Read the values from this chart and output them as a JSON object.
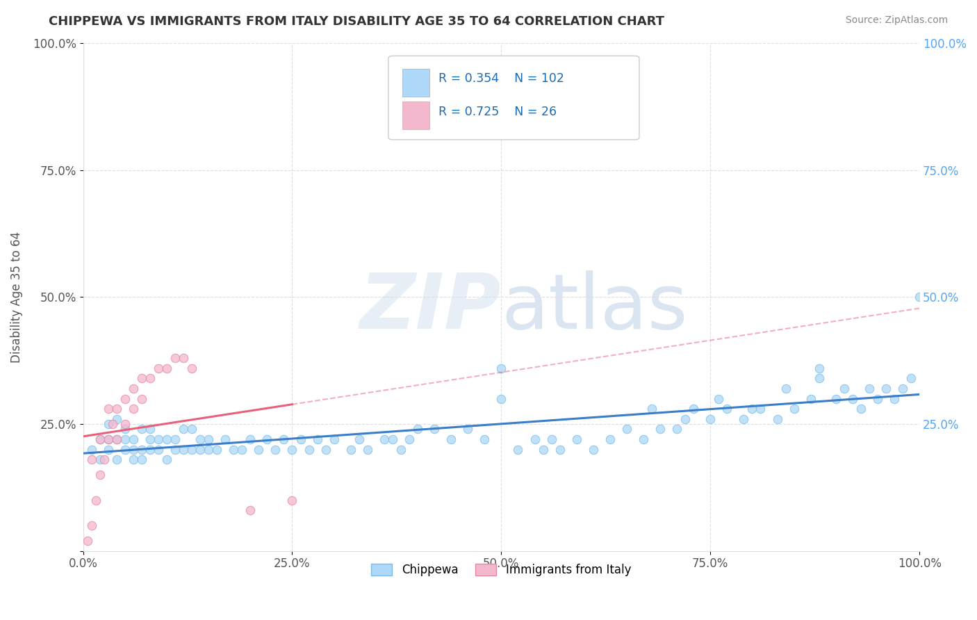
{
  "title": "CHIPPEWA VS IMMIGRANTS FROM ITALY DISABILITY AGE 35 TO 64 CORRELATION CHART",
  "source": "Source: ZipAtlas.com",
  "ylabel": "Disability Age 35 to 64",
  "watermark": "ZIPatlas",
  "legend_label1": "Chippewa",
  "legend_label2": "Immigrants from Italy",
  "r1": 0.354,
  "n1": 102,
  "r2": 0.725,
  "n2": 26,
  "color1": "#ADD8F7",
  "color2": "#F4B8CE",
  "line1_color": "#3A7DC9",
  "line2_color": "#E8607A",
  "xlim": [
    0.0,
    1.0
  ],
  "ylim": [
    0.0,
    1.0
  ],
  "xticks": [
    0.0,
    0.25,
    0.5,
    0.75,
    1.0
  ],
  "yticks": [
    0.0,
    0.25,
    0.5,
    0.75,
    1.0
  ],
  "xticklabels": [
    "0.0%",
    "25.0%",
    "50.0%",
    "75.0%",
    "100.0%"
  ],
  "yticklabels": [
    "",
    "25.0%",
    "50.0%",
    "75.0%",
    "100.0%"
  ],
  "background_color": "#FFFFFF",
  "legend_text_color": "#1a6bb5",
  "n_text_color": "#1a6bb5",
  "chippewa_x": [
    0.01,
    0.02,
    0.02,
    0.03,
    0.03,
    0.03,
    0.04,
    0.04,
    0.04,
    0.05,
    0.05,
    0.05,
    0.06,
    0.06,
    0.06,
    0.07,
    0.07,
    0.07,
    0.08,
    0.08,
    0.08,
    0.09,
    0.09,
    0.1,
    0.1,
    0.11,
    0.11,
    0.12,
    0.12,
    0.13,
    0.13,
    0.14,
    0.14,
    0.15,
    0.15,
    0.16,
    0.17,
    0.18,
    0.19,
    0.2,
    0.21,
    0.22,
    0.23,
    0.24,
    0.25,
    0.26,
    0.27,
    0.28,
    0.29,
    0.3,
    0.32,
    0.33,
    0.34,
    0.36,
    0.37,
    0.38,
    0.39,
    0.4,
    0.42,
    0.44,
    0.46,
    0.48,
    0.5,
    0.52,
    0.54,
    0.56,
    0.57,
    0.59,
    0.61,
    0.63,
    0.65,
    0.67,
    0.69,
    0.71,
    0.73,
    0.75,
    0.77,
    0.79,
    0.81,
    0.83,
    0.85,
    0.87,
    0.88,
    0.9,
    0.91,
    0.92,
    0.93,
    0.94,
    0.95,
    0.96,
    0.97,
    0.98,
    0.99,
    1.0,
    0.68,
    0.72,
    0.76,
    0.8,
    0.84,
    0.88,
    0.5,
    0.55
  ],
  "chippewa_y": [
    0.2,
    0.18,
    0.22,
    0.2,
    0.22,
    0.25,
    0.18,
    0.22,
    0.26,
    0.2,
    0.22,
    0.24,
    0.18,
    0.2,
    0.22,
    0.18,
    0.2,
    0.24,
    0.2,
    0.22,
    0.24,
    0.2,
    0.22,
    0.18,
    0.22,
    0.2,
    0.22,
    0.2,
    0.24,
    0.2,
    0.24,
    0.2,
    0.22,
    0.2,
    0.22,
    0.2,
    0.22,
    0.2,
    0.2,
    0.22,
    0.2,
    0.22,
    0.2,
    0.22,
    0.2,
    0.22,
    0.2,
    0.22,
    0.2,
    0.22,
    0.2,
    0.22,
    0.2,
    0.22,
    0.22,
    0.2,
    0.22,
    0.24,
    0.24,
    0.22,
    0.24,
    0.22,
    0.3,
    0.2,
    0.22,
    0.22,
    0.2,
    0.22,
    0.2,
    0.22,
    0.24,
    0.22,
    0.24,
    0.24,
    0.28,
    0.26,
    0.28,
    0.26,
    0.28,
    0.26,
    0.28,
    0.3,
    0.36,
    0.3,
    0.32,
    0.3,
    0.28,
    0.32,
    0.3,
    0.32,
    0.3,
    0.32,
    0.34,
    0.5,
    0.28,
    0.26,
    0.3,
    0.28,
    0.32,
    0.34,
    0.36,
    0.2
  ],
  "italy_x": [
    0.005,
    0.01,
    0.01,
    0.015,
    0.02,
    0.02,
    0.025,
    0.03,
    0.03,
    0.035,
    0.04,
    0.04,
    0.05,
    0.05,
    0.06,
    0.06,
    0.07,
    0.07,
    0.08,
    0.09,
    0.1,
    0.11,
    0.12,
    0.13,
    0.2,
    0.25
  ],
  "italy_y": [
    0.02,
    0.05,
    0.18,
    0.1,
    0.15,
    0.22,
    0.18,
    0.22,
    0.28,
    0.25,
    0.22,
    0.28,
    0.25,
    0.3,
    0.28,
    0.32,
    0.3,
    0.34,
    0.34,
    0.36,
    0.36,
    0.38,
    0.38,
    0.36,
    0.08,
    0.1
  ]
}
